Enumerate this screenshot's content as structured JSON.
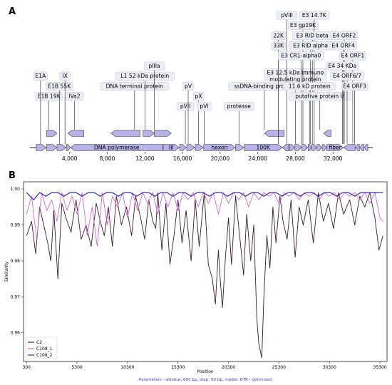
{
  "panel_a_label": "A",
  "panel_b_label": "B",
  "chart_data": [
    {
      "type": "genome_map",
      "xlim": [
        0,
        36000
      ],
      "xticks": [
        {
          "value": 4000,
          "label": "4,000"
        },
        {
          "value": 8000,
          "label": "8,000"
        },
        {
          "value": 12000,
          "label": "12,000"
        },
        {
          "value": 16000,
          "label": "16,000"
        },
        {
          "value": 20000,
          "label": "20,000"
        },
        {
          "value": 24000,
          "label": "24,000"
        },
        {
          "value": 28000,
          "label": "28,000"
        },
        {
          "value": 32000,
          "label": "32,000"
        }
      ],
      "genes": [
        {
          "label": "",
          "start": 450,
          "end": 1500,
          "strand": 1
        },
        {
          "label": "",
          "start": 1550,
          "end": 2650,
          "strand": 1
        },
        {
          "label": "",
          "start": 2650,
          "end": 3600,
          "strand": 1
        },
        {
          "label": "",
          "start": 3650,
          "end": 4050,
          "strand": 1
        },
        {
          "label": "DNA polymerase",
          "start": 4100,
          "end": 13900,
          "strand": -1
        },
        {
          "label": "III",
          "start": 13950,
          "end": 15650,
          "strand": 1
        },
        {
          "label": "",
          "start": 15700,
          "end": 16400,
          "strand": 1
        },
        {
          "label": "",
          "start": 16450,
          "end": 17300,
          "strand": 1
        },
        {
          "label": "",
          "start": 17350,
          "end": 18200,
          "strand": 1
        },
        {
          "label": "hexon",
          "start": 18250,
          "end": 21600,
          "strand": 1
        },
        {
          "label": "",
          "start": 21650,
          "end": 22500,
          "strand": 1
        },
        {
          "label": "100K",
          "start": 22550,
          "end": 26600,
          "strand": 1
        },
        {
          "label": "",
          "start": 26650,
          "end": 27300,
          "strand": -1
        },
        {
          "label": "",
          "start": 27350,
          "end": 27900,
          "strand": 1
        },
        {
          "label": "",
          "start": 27950,
          "end": 28650,
          "strand": 1
        },
        {
          "label": "",
          "start": 28700,
          "end": 29300,
          "strand": 1
        },
        {
          "label": "",
          "start": 29350,
          "end": 29700,
          "strand": 1
        },
        {
          "label": "",
          "start": 29750,
          "end": 30250,
          "strand": 1
        },
        {
          "label": "",
          "start": 30300,
          "end": 30800,
          "strand": 1
        },
        {
          "label": "",
          "start": 30850,
          "end": 31300,
          "strand": 1
        },
        {
          "label": "fiber",
          "start": 31350,
          "end": 33100,
          "strand": 1
        },
        {
          "label": "",
          "start": 33150,
          "end": 34350,
          "strand": -1
        },
        {
          "label": "",
          "start": 34400,
          "end": 34800,
          "strand": -1
        },
        {
          "label": "",
          "start": 34850,
          "end": 35300,
          "strand": -1
        },
        {
          "label": "",
          "start": 35350,
          "end": 35700,
          "strand": -1
        }
      ],
      "track_labels": [
        {
          "label": "E1B 19K",
          "pos": 1800,
          "row": 4,
          "gene": [
            1550,
            2650,
            1
          ]
        },
        {
          "label": "IVa2",
          "pos": 4500,
          "row": 4,
          "gene": [
            3800,
            5500,
            -1
          ]
        },
        {
          "label": "E1A",
          "pos": 900,
          "row": 6
        },
        {
          "label": "E1B 55K",
          "pos": 2900,
          "row": 5
        },
        {
          "label": "IX",
          "pos": 3500,
          "row": 6
        },
        {
          "label": "DNA terminal protein",
          "pos": 10900,
          "row": 5,
          "gene": [
            8400,
            11500,
            -1
          ]
        },
        {
          "label": "L1 52 kDa protein",
          "pos": 12000,
          "row": 6,
          "gene": [
            11800,
            13000,
            1
          ]
        },
        {
          "label": "pIIIa",
          "pos": 13000,
          "row": 7,
          "gene": [
            13000,
            14800,
            1
          ]
        },
        {
          "label": "pVII",
          "pos": 16300,
          "row": 3
        },
        {
          "label": "pV",
          "pos": 16600,
          "row": 5
        },
        {
          "label": "pX",
          "pos": 17700,
          "row": 4
        },
        {
          "label": "pVI",
          "pos": 18300,
          "row": 3
        },
        {
          "label": "protease",
          "pos": 22000,
          "row": 3
        },
        {
          "label": "ssDNA-binding protein",
          "pos": 24700,
          "row": 5,
          "gene": [
            24700,
            26800,
            -1
          ]
        },
        {
          "label": "E3 12.5 kDa immune\nmodulating protein",
          "pos": 28000,
          "row": 6
        },
        {
          "label": "22K",
          "pos": 26200,
          "row": 10
        },
        {
          "label": "33K",
          "pos": 26200,
          "row": 9
        },
        {
          "label": "pVIII",
          "pos": 27100,
          "row": 12
        },
        {
          "label": "E3 gp19K",
          "pos": 28800,
          "row": 11
        },
        {
          "label": "E3 14.7K",
          "pos": 30000,
          "row": 12
        },
        {
          "label": "E3 RID beta",
          "pos": 29800,
          "row": 10
        },
        {
          "label": "E3 RID alpha",
          "pos": 29600,
          "row": 9
        },
        {
          "label": "E3 CR1-alpha0",
          "pos": 28600,
          "row": 8
        },
        {
          "label": "11.6 kD protein",
          "pos": 29500,
          "row": 5
        },
        {
          "label": "putative protein U",
          "pos": 30600,
          "row": 4,
          "gene": [
            31000,
            31800,
            -1
          ]
        },
        {
          "label": "E4 ORF2",
          "pos": 33200,
          "row": 10
        },
        {
          "label": "E4 ORF4",
          "pos": 33100,
          "row": 9
        },
        {
          "label": "E4 ORF1",
          "pos": 34100,
          "row": 8
        },
        {
          "label": "E4 34 KDa",
          "pos": 33000,
          "row": 7
        },
        {
          "label": "E4 ORF6/7",
          "pos": 33500,
          "row": 6
        },
        {
          "label": "E4 ORF3",
          "pos": 34300,
          "row": 5
        }
      ]
    },
    {
      "type": "line",
      "xlabel": "Position",
      "ylabel": "Similarity",
      "xlim": [
        0,
        36000
      ],
      "ylim": [
        0.952,
        1.002
      ],
      "xticks": [
        300,
        5300,
        10300,
        15300,
        20300,
        25300,
        30300,
        35300
      ],
      "yticks": [
        "0.96",
        "0.97",
        "0.98",
        "0.99",
        "1.00"
      ],
      "legend_position": "bottom-left",
      "caption": "Parameters - window: 600 bp, step: 50 bp, model: GTR - optimized",
      "series": [
        {
          "name": "C2",
          "color": "#3d1a2b",
          "x": [
            300,
            800,
            1200,
            1600,
            2000,
            2400,
            2700,
            3000,
            3400,
            3800,
            4200,
            4700,
            5200,
            5700,
            6200,
            6700,
            7200,
            7600,
            8000,
            8400,
            8800,
            9200,
            9700,
            10200,
            10700,
            11100,
            11600,
            12000,
            12400,
            12800,
            13100,
            13300,
            13700,
            14100,
            14500,
            14900,
            15300,
            15700,
            16100,
            16600,
            17000,
            17400,
            17900,
            18300,
            18700,
            19000,
            19300,
            19500,
            19700,
            20000,
            20300,
            20600,
            21000,
            21400,
            21800,
            22100,
            22500,
            22800,
            23100,
            23300,
            23600,
            23800,
            24100,
            24400,
            24700,
            25000,
            25400,
            25700,
            26100,
            26500,
            26900,
            27300,
            27700,
            28200,
            28700,
            29200,
            29700,
            30200,
            30700,
            31200,
            31700,
            32300,
            32800,
            33300,
            33800,
            34300,
            34800,
            35200,
            35600
          ],
          "y": [
            0.987,
            0.991,
            0.982,
            0.995,
            0.99,
            0.985,
            0.98,
            0.994,
            0.975,
            0.996,
            0.992,
            0.988,
            0.997,
            0.986,
            0.99,
            0.984,
            0.996,
            0.991,
            0.987,
            0.995,
            0.984,
            0.998,
            0.99,
            0.995,
            0.987,
            0.998,
            0.992,
            0.986,
            0.997,
            0.991,
            0.989,
            0.999,
            0.983,
            0.996,
            0.979,
            0.987,
            0.997,
            0.985,
            0.994,
            0.98,
            0.997,
            0.984,
            0.999,
            0.979,
            0.975,
            0.968,
            0.983,
            0.974,
            0.967,
            0.981,
            0.992,
            0.979,
            0.998,
            0.987,
            0.976,
            0.993,
            0.98,
            0.99,
            0.964,
            0.957,
            0.953,
            0.97,
            0.987,
            0.978,
            0.995,
            0.985,
            0.998,
            0.991,
            0.986,
            0.997,
            0.981,
            0.995,
            0.99,
            0.997,
            0.985,
            0.999,
            0.991,
            0.996,
            0.989,
            0.999,
            0.993,
            0.997,
            0.99,
            0.998,
            0.995,
            0.999,
            0.992,
            0.983,
            0.987
          ]
        },
        {
          "name": "C108_1",
          "color": "#d06ad6",
          "x": [
            300,
            800,
            1300,
            1800,
            2300,
            2800,
            3300,
            3800,
            4300,
            4800,
            5300,
            5800,
            6300,
            6800,
            7300,
            7800,
            8300,
            8800,
            9300,
            9800,
            10300,
            10800,
            11300,
            11800,
            12300,
            12800,
            13300,
            13800,
            14300,
            14800,
            15300,
            15800,
            16300,
            16800,
            17300,
            17800,
            18300,
            18800,
            19300,
            19800,
            20300,
            20800,
            21300,
            21800,
            22300,
            22800,
            23300,
            23800,
            24300,
            24800,
            25300,
            25800,
            26300,
            26800,
            27300,
            27800,
            28300,
            28800,
            29300,
            29800,
            30300,
            30800,
            31300,
            31800,
            32300,
            32800,
            33300,
            33800,
            34300,
            34800,
            35300,
            35600
          ],
          "y": [
            0.993,
            0.998,
            0.986,
            0.999,
            0.994,
            0.997,
            0.991,
            0.999,
            0.994,
            0.998,
            0.993,
            0.999,
            0.987,
            0.995,
            0.984,
            0.999,
            0.99,
            0.998,
            0.995,
            0.999,
            0.992,
            0.999,
            0.994,
            0.999,
            0.996,
            0.999,
            0.993,
            0.999,
            0.995,
            0.999,
            0.994,
            0.999,
            0.997,
            0.999,
            0.995,
            0.999,
            0.996,
            0.999,
            0.993,
            0.999,
            0.996,
            0.999,
            0.997,
            0.999,
            0.995,
            0.999,
            0.997,
            0.999,
            0.998,
            0.999,
            0.996,
            0.999,
            0.998,
            0.999,
            0.997,
            0.999,
            0.998,
            0.999,
            0.997,
            0.999,
            0.998,
            0.999,
            0.997,
            0.999,
            0.998,
            0.999,
            0.997,
            0.999,
            0.996,
            0.999,
            0.992,
            0.991
          ]
        },
        {
          "name": "C108_2",
          "color": "#3b2ea8",
          "x": [
            300,
            1000,
            1600,
            2200,
            2800,
            3400,
            4000,
            4600,
            5200,
            5800,
            6400,
            7000,
            7600,
            8200,
            8800,
            9400,
            10000,
            10600,
            11200,
            11800,
            12400,
            13000,
            13600,
            14200,
            14800,
            15400,
            16000,
            16600,
            17200,
            17800,
            18400,
            19000,
            19600,
            20200,
            20800,
            21400,
            22000,
            22600,
            23200,
            23800,
            24400,
            25000,
            25600,
            26200,
            26800,
            27400,
            28000,
            28600,
            29200,
            29800,
            30400,
            31000,
            31600,
            32200,
            32800,
            33400,
            34000,
            34600,
            35200,
            35600
          ],
          "y": [
            0.999,
            0.997,
            0.999,
            0.998,
            0.999,
            0.999,
            0.998,
            0.999,
            0.999,
            0.998,
            0.999,
            0.999,
            0.998,
            0.999,
            0.999,
            0.998,
            0.999,
            0.999,
            0.998,
            0.999,
            0.999,
            0.998,
            0.999,
            0.999,
            0.998,
            0.999,
            0.999,
            0.998,
            0.999,
            0.999,
            0.998,
            0.999,
            0.999,
            0.998,
            0.999,
            0.999,
            0.998,
            0.999,
            0.999,
            0.998,
            0.999,
            0.999,
            0.998,
            0.999,
            0.999,
            0.998,
            0.999,
            0.999,
            0.998,
            0.999,
            0.999,
            0.998,
            0.999,
            0.999,
            0.998,
            0.999,
            0.999,
            0.999,
            0.999,
            0.999
          ]
        }
      ]
    }
  ]
}
